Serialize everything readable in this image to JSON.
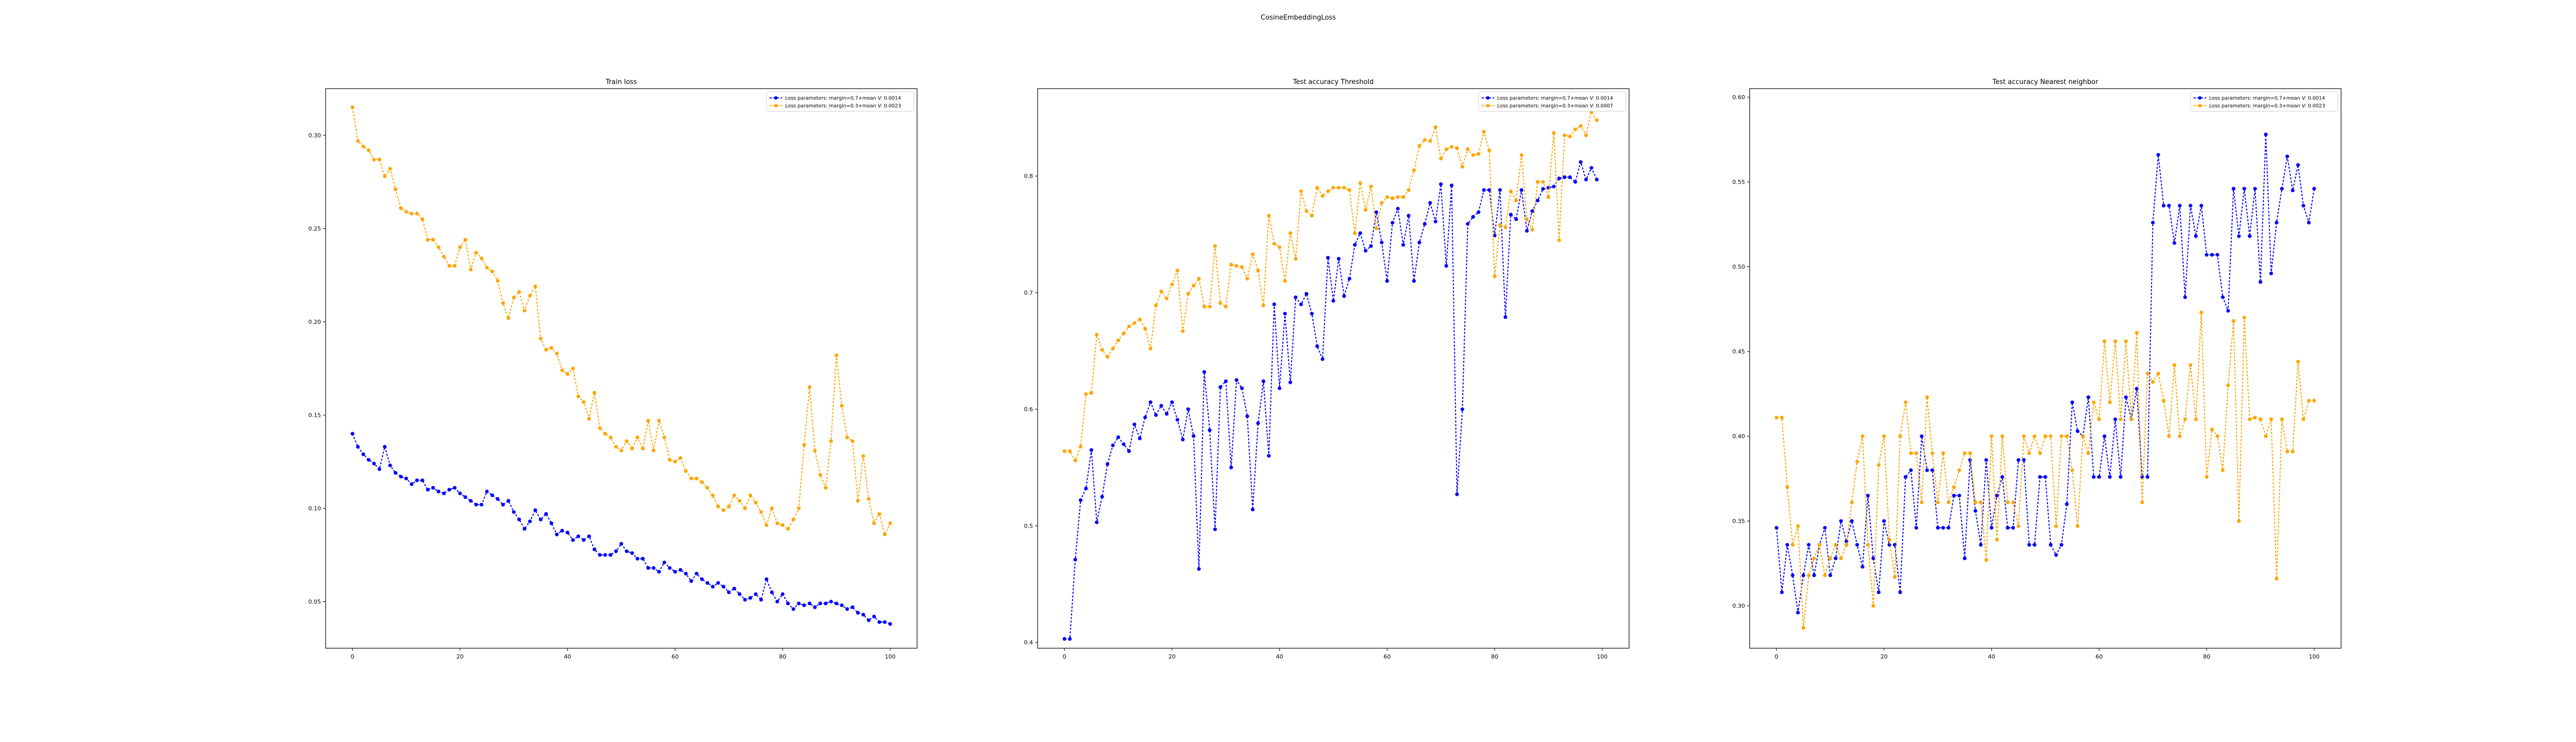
{
  "figure": {
    "suptitle": "CosineEmbeddingLoss"
  },
  "colors": {
    "blue_series": "#0000ff",
    "orange_series": "#ffa500",
    "axes": "#000000"
  },
  "chart_data": [
    {
      "type": "line",
      "title": "Train loss",
      "xlabel": "",
      "ylabel": "",
      "xlim": [
        -5,
        105
      ],
      "ylim": [
        0.025,
        0.325
      ],
      "xticks": [
        0,
        20,
        40,
        60,
        80,
        100
      ],
      "yticks": [
        0.05,
        0.1,
        0.15,
        0.2,
        0.25,
        0.3
      ],
      "ytick_labels": [
        "0.05",
        "0.10",
        "0.15",
        "0.20",
        "0.25",
        "0.30"
      ],
      "legend_position": "top-right",
      "series": [
        {
          "name": "Loss parameters: margin=0.7+mean V: 0.0014",
          "color": "#0000ff",
          "values": [
            0.14,
            0.133,
            0.129,
            0.126,
            0.124,
            0.121,
            0.133,
            0.123,
            0.119,
            0.117,
            0.116,
            0.113,
            0.115,
            0.115,
            0.11,
            0.111,
            0.109,
            0.108,
            0.11,
            0.111,
            0.108,
            0.106,
            0.104,
            0.102,
            0.102,
            0.109,
            0.107,
            0.105,
            0.102,
            0.104,
            0.098,
            0.094,
            0.089,
            0.093,
            0.099,
            0.094,
            0.097,
            0.092,
            0.086,
            0.088,
            0.087,
            0.083,
            0.085,
            0.083,
            0.085,
            0.078,
            0.075,
            0.075,
            0.075,
            0.077,
            0.081,
            0.077,
            0.076,
            0.073,
            0.073,
            0.068,
            0.068,
            0.066,
            0.071,
            0.068,
            0.066,
            0.067,
            0.065,
            0.061,
            0.065,
            0.062,
            0.06,
            0.058,
            0.06,
            0.058,
            0.055,
            0.057,
            0.054,
            0.051,
            0.052,
            0.054,
            0.051,
            0.062,
            0.055,
            0.05,
            0.054,
            0.049,
            0.046,
            0.049,
            0.048,
            0.049,
            0.047,
            0.049,
            0.049,
            0.05,
            0.049,
            0.048,
            0.046,
            0.047,
            0.044,
            0.043,
            0.04,
            0.042,
            0.039,
            0.039,
            0.038
          ]
        },
        {
          "name": "Loss parameters: margin=0.3+mean V: 0.0023",
          "color": "#ffa500",
          "values": [
            0.315,
            0.297,
            0.294,
            0.292,
            0.287,
            0.287,
            0.278,
            0.282,
            0.271,
            0.261,
            0.259,
            0.258,
            0.258,
            0.255,
            0.244,
            0.244,
            0.24,
            0.235,
            0.23,
            0.23,
            0.24,
            0.244,
            0.228,
            0.237,
            0.234,
            0.229,
            0.227,
            0.222,
            0.21,
            0.202,
            0.213,
            0.216,
            0.206,
            0.214,
            0.219,
            0.191,
            0.185,
            0.186,
            0.183,
            0.174,
            0.172,
            0.175,
            0.16,
            0.157,
            0.148,
            0.162,
            0.143,
            0.14,
            0.138,
            0.133,
            0.131,
            0.136,
            0.132,
            0.138,
            0.132,
            0.147,
            0.131,
            0.147,
            0.138,
            0.126,
            0.125,
            0.127,
            0.12,
            0.116,
            0.116,
            0.114,
            0.111,
            0.107,
            0.101,
            0.099,
            0.101,
            0.107,
            0.104,
            0.1,
            0.107,
            0.103,
            0.098,
            0.091,
            0.1,
            0.092,
            0.091,
            0.089,
            0.094,
            0.1,
            0.134,
            0.165,
            0.131,
            0.118,
            0.111,
            0.136,
            0.182,
            0.155,
            0.138,
            0.136,
            0.104,
            0.128,
            0.105,
            0.092,
            0.097,
            0.086,
            0.092
          ]
        }
      ]
    },
    {
      "type": "line",
      "title": "Test accuracy Threshold",
      "xlabel": "",
      "ylabel": "",
      "xlim": [
        -5,
        105
      ],
      "ylim": [
        0.395,
        0.875
      ],
      "xticks": [
        0,
        20,
        40,
        60,
        80,
        100
      ],
      "yticks": [
        0.4,
        0.5,
        0.6,
        0.7,
        0.8
      ],
      "ytick_labels": [
        "0.4",
        "0.5",
        "0.6",
        "0.7",
        "0.8"
      ],
      "legend_position": "top-right",
      "series": [
        {
          "name": "Loss parameters: margin=0.7+mean V: 0.0014",
          "color": "#0000ff",
          "values": [
            0.403,
            0.403,
            0.471,
            0.522,
            0.532,
            0.565,
            0.503,
            0.525,
            0.553,
            0.569,
            0.576,
            0.57,
            0.564,
            0.587,
            0.575,
            0.593,
            0.606,
            0.595,
            0.603,
            0.596,
            0.606,
            0.591,
            0.574,
            0.6,
            0.577,
            0.463,
            0.632,
            0.582,
            0.497,
            0.619,
            0.624,
            0.55,
            0.625,
            0.618,
            0.594,
            0.514,
            0.588,
            0.624,
            0.56,
            0.69,
            0.618,
            0.682,
            0.623,
            0.696,
            0.69,
            0.699,
            0.682,
            0.654,
            0.643,
            0.73,
            0.693,
            0.729,
            0.697,
            0.712,
            0.741,
            0.751,
            0.736,
            0.74,
            0.769,
            0.743,
            0.71,
            0.76,
            0.772,
            0.741,
            0.766,
            0.71,
            0.743,
            0.759,
            0.777,
            0.761,
            0.793,
            0.723,
            0.792,
            0.527,
            0.6,
            0.759,
            0.765,
            0.769,
            0.788,
            0.788,
            0.749,
            0.788,
            0.679,
            0.767,
            0.763,
            0.788,
            0.753,
            0.77,
            0.779,
            0.789,
            0.79,
            0.791,
            0.798,
            0.799,
            0.799,
            0.795,
            0.812,
            0.797,
            0.807,
            0.797
          ]
        },
        {
          "name": "Loss parameters: margin=0.3+mean V: 0.0007",
          "color": "#ffa500",
          "values": [
            0.564,
            0.564,
            0.556,
            0.568,
            0.613,
            0.614,
            0.664,
            0.651,
            0.645,
            0.652,
            0.659,
            0.665,
            0.671,
            0.674,
            0.677,
            0.669,
            0.652,
            0.689,
            0.701,
            0.695,
            0.707,
            0.719,
            0.667,
            0.699,
            0.706,
            0.712,
            0.688,
            0.688,
            0.74,
            0.691,
            0.688,
            0.724,
            0.723,
            0.722,
            0.712,
            0.733,
            0.719,
            0.689,
            0.766,
            0.742,
            0.739,
            0.71,
            0.751,
            0.729,
            0.787,
            0.77,
            0.766,
            0.79,
            0.783,
            0.787,
            0.79,
            0.79,
            0.79,
            0.788,
            0.751,
            0.794,
            0.771,
            0.791,
            0.755,
            0.777,
            0.782,
            0.781,
            0.782,
            0.782,
            0.788,
            0.805,
            0.826,
            0.831,
            0.83,
            0.842,
            0.815,
            0.823,
            0.825,
            0.824,
            0.808,
            0.823,
            0.818,
            0.819,
            0.838,
            0.822,
            0.714,
            0.758,
            0.756,
            0.787,
            0.779,
            0.818,
            0.763,
            0.754,
            0.795,
            0.795,
            0.782,
            0.837,
            0.745,
            0.835,
            0.834,
            0.84,
            0.843,
            0.835,
            0.855,
            0.848
          ]
        }
      ]
    },
    {
      "type": "line",
      "title": "Test accuracy Nearest neighbor",
      "xlabel": "",
      "ylabel": "",
      "xlim": [
        -5,
        105
      ],
      "ylim": [
        0.275,
        0.605
      ],
      "xticks": [
        0,
        20,
        40,
        60,
        80,
        100
      ],
      "yticks": [
        0.3,
        0.35,
        0.4,
        0.45,
        0.5,
        0.55,
        0.6
      ],
      "ytick_labels": [
        "0.30",
        "0.35",
        "0.40",
        "0.45",
        "0.50",
        "0.55",
        "0.60"
      ],
      "legend_position": "top-right",
      "series": [
        {
          "name": "Loss parameters: margin=0.7+mean V: 0.0014",
          "color": "#0000ff",
          "values": [
            0.346,
            0.308,
            0.336,
            0.318,
            0.296,
            0.318,
            0.336,
            0.318,
            0.336,
            0.346,
            0.318,
            0.328,
            0.35,
            0.338,
            0.35,
            0.336,
            0.323,
            0.365,
            0.328,
            0.308,
            0.35,
            0.336,
            0.336,
            0.308,
            0.376,
            0.38,
            0.346,
            0.4,
            0.38,
            0.38,
            0.346,
            0.346,
            0.346,
            0.365,
            0.365,
            0.328,
            0.386,
            0.356,
            0.336,
            0.386,
            0.346,
            0.365,
            0.376,
            0.346,
            0.346,
            0.386,
            0.386,
            0.336,
            0.336,
            0.376,
            0.376,
            0.336,
            0.33,
            0.336,
            0.36,
            0.42,
            0.403,
            0.4,
            0.423,
            0.376,
            0.376,
            0.4,
            0.376,
            0.41,
            0.376,
            0.423,
            0.41,
            0.428,
            0.376,
            0.376,
            0.526,
            0.566,
            0.536,
            0.536,
            0.514,
            0.536,
            0.482,
            0.536,
            0.518,
            0.536,
            0.507,
            0.507,
            0.507,
            0.482,
            0.474,
            0.546,
            0.518,
            0.546,
            0.518,
            0.546,
            0.491,
            0.578,
            0.496,
            0.526,
            0.546,
            0.565,
            0.545,
            0.56,
            0.536,
            0.526,
            0.546
          ]
        },
        {
          "name": "Loss parameters: margin=0.3+mean V: 0.0023",
          "color": "#ffa500",
          "values": [
            0.411,
            0.411,
            0.37,
            0.336,
            0.347,
            0.287,
            0.318,
            0.328,
            0.336,
            0.318,
            0.328,
            0.336,
            0.328,
            0.336,
            0.361,
            0.385,
            0.4,
            0.336,
            0.3,
            0.383,
            0.4,
            0.339,
            0.317,
            0.4,
            0.42,
            0.39,
            0.39,
            0.361,
            0.423,
            0.39,
            0.361,
            0.39,
            0.361,
            0.37,
            0.38,
            0.39,
            0.39,
            0.361,
            0.361,
            0.327,
            0.4,
            0.339,
            0.4,
            0.361,
            0.361,
            0.347,
            0.4,
            0.39,
            0.4,
            0.39,
            0.4,
            0.4,
            0.347,
            0.4,
            0.4,
            0.38,
            0.347,
            0.4,
            0.39,
            0.42,
            0.41,
            0.456,
            0.42,
            0.456,
            0.41,
            0.456,
            0.41,
            0.461,
            0.361,
            0.437,
            0.432,
            0.437,
            0.421,
            0.4,
            0.442,
            0.4,
            0.41,
            0.442,
            0.41,
            0.473,
            0.376,
            0.404,
            0.4,
            0.38,
            0.43,
            0.468,
            0.35,
            0.47,
            0.41,
            0.411,
            0.41,
            0.4,
            0.41,
            0.316,
            0.41,
            0.391,
            0.391,
            0.444,
            0.41,
            0.421,
            0.421
          ]
        }
      ]
    }
  ]
}
